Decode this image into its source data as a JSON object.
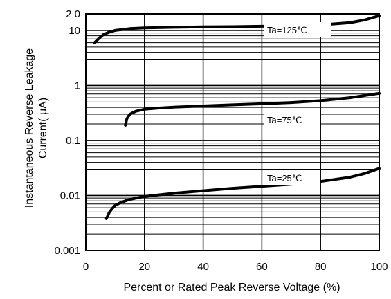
{
  "chart_data": {
    "type": "line",
    "title": "",
    "xlabel": "Percent or Rated Peak Reverse Voltage (%)",
    "ylabel_lines": [
      "Instantaneous Reverse Leakage",
      "Current( μA)"
    ],
    "xlim": [
      0,
      100
    ],
    "ylim": [
      0.001,
      20
    ],
    "y_scale": "log",
    "grid": true,
    "x_ticks": [
      0,
      20,
      40,
      60,
      80,
      100
    ],
    "x_tick_labels": [
      "0",
      "20",
      "40",
      "60",
      "80",
      "100"
    ],
    "y_ticks": [
      0.001,
      0.01,
      0.1,
      1,
      10,
      20
    ],
    "y_tick_labels": [
      "0.001",
      "0.01",
      "0.1",
      "1",
      "10",
      "2 0"
    ],
    "series": [
      {
        "name": "Ta=125℃",
        "x": [
          3,
          4,
          5,
          6,
          8,
          10,
          15,
          20,
          30,
          40,
          50,
          60,
          70,
          80,
          90,
          95,
          100
        ],
        "y": [
          6,
          6.8,
          7.6,
          8.4,
          9.3,
          10,
          10.8,
          11.1,
          11.4,
          11.6,
          11.7,
          11.9,
          12.1,
          12.6,
          13.8,
          15.5,
          18.5
        ]
      },
      {
        "name": "Ta=75℃",
        "x": [
          13.5,
          14,
          15,
          17,
          20,
          25,
          30,
          40,
          50,
          60,
          70,
          80,
          90,
          100
        ],
        "y": [
          0.19,
          0.25,
          0.3,
          0.34,
          0.37,
          0.39,
          0.405,
          0.425,
          0.445,
          0.465,
          0.49,
          0.53,
          0.6,
          0.72
        ]
      },
      {
        "name": "Ta=25℃",
        "x": [
          7,
          7.5,
          8,
          9,
          10,
          12,
          15,
          20,
          30,
          40,
          50,
          60,
          70,
          80,
          90,
          95,
          100
        ],
        "y": [
          0.0038,
          0.0043,
          0.0049,
          0.0058,
          0.0066,
          0.0075,
          0.0085,
          0.0096,
          0.011,
          0.0122,
          0.0135,
          0.0147,
          0.016,
          0.018,
          0.0215,
          0.025,
          0.031
        ]
      }
    ]
  }
}
